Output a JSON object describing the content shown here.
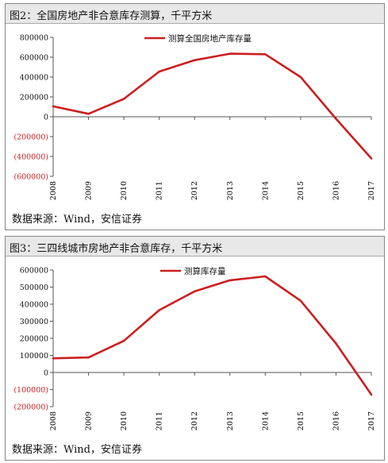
{
  "styles": {
    "line_color": "#cc1f1f",
    "negative_tick_color": "#cc1f1f",
    "axis_color": "#555555"
  },
  "panels": [
    {
      "title": "图2：全国房地产非合意库存测算，千平方米",
      "source": "数据来源：Wind，安信证券"
    },
    {
      "title": "图3：三四线城市房地产非合意库存，千平方米",
      "source": "数据来源：Wind，安信证券"
    }
  ],
  "chart_data": [
    {
      "type": "line",
      "categories": [
        "2008",
        "2009",
        "2010",
        "2011",
        "2012",
        "2013",
        "2014",
        "2015",
        "2016",
        "2017"
      ],
      "series": [
        {
          "name": "测算全国房地产库存量",
          "values": [
            105000,
            30000,
            180000,
            455000,
            570000,
            635000,
            630000,
            400000,
            -20000,
            -420000
          ]
        }
      ],
      "ylim": [
        -600000,
        800000
      ],
      "yticks": [
        -600000,
        -400000,
        -200000,
        0,
        200000,
        400000,
        600000,
        800000
      ],
      "ytick_labels": [
        "(600000)",
        "(400000)",
        "(200000)",
        "0",
        "200000",
        "400000",
        "600000",
        "800000"
      ],
      "legend": "top-center",
      "grid": false
    },
    {
      "type": "line",
      "categories": [
        "2008",
        "2009",
        "2010",
        "2011",
        "2012",
        "2013",
        "2014",
        "2015",
        "2016",
        "2017"
      ],
      "series": [
        {
          "name": "测算库存量",
          "values": [
            83000,
            88000,
            185000,
            365000,
            475000,
            540000,
            563000,
            420000,
            170000,
            -130000
          ]
        }
      ],
      "ylim": [
        -200000,
        600000
      ],
      "yticks": [
        -200000,
        -100000,
        0,
        100000,
        200000,
        300000,
        400000,
        500000,
        600000
      ],
      "ytick_labels": [
        "(200000)",
        "(100000)",
        "0",
        "100000",
        "200000",
        "300000",
        "400000",
        "500000",
        "600000"
      ],
      "legend": "top-center",
      "grid": false
    }
  ]
}
